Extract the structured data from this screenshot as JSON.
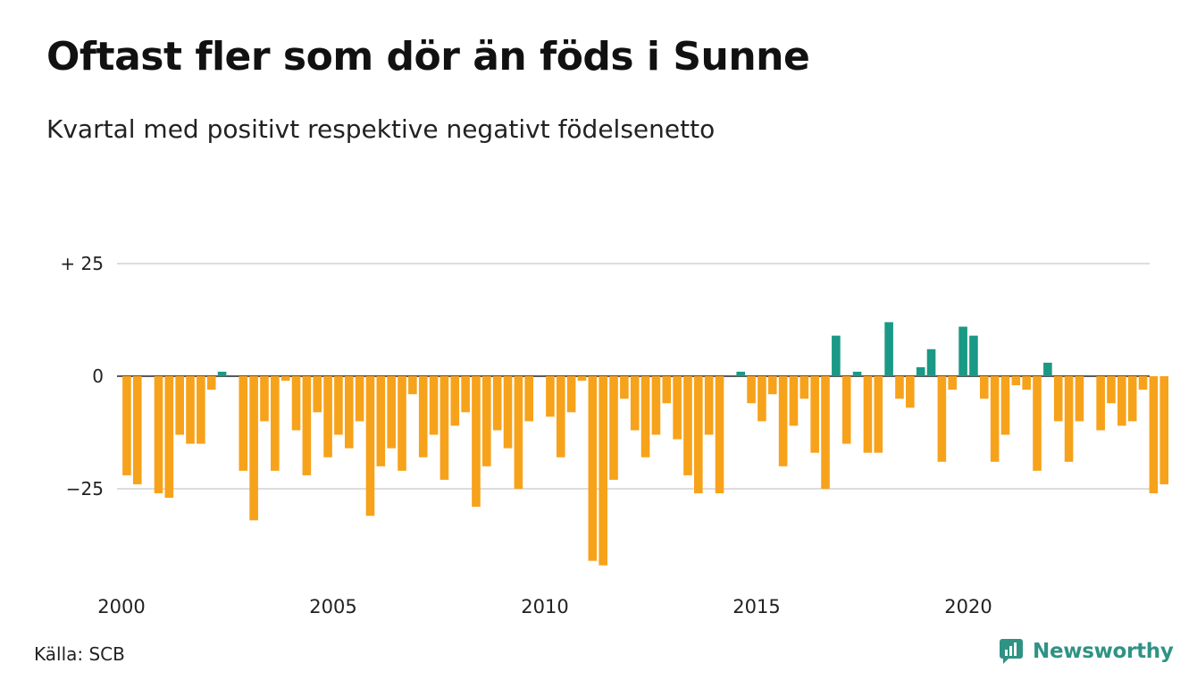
{
  "title": "Oftast fler som dör än föds i Sunne",
  "subtitle": "Kvartal med positivt respektive negativt födelsenetto",
  "source": "Källa: SCB",
  "brand": "Newsworthy",
  "brand_icon": "newsworthy-logo-icon",
  "colors": {
    "positive": "#1a9986",
    "negative": "#f7a21b",
    "grid": "#dddddd",
    "brand": "#2f9384"
  },
  "chart_data": {
    "type": "bar",
    "title": "Oftast fler som dör än föds i Sunne",
    "subtitle": "Kvartal med positivt respektive negativt födelsenetto",
    "xlabel": "",
    "ylabel": "",
    "ylim": [
      -43,
      25
    ],
    "xlim": [
      2000,
      2024.5
    ],
    "yticks": [
      {
        "value": 25,
        "label": "+ 25"
      },
      {
        "value": 0,
        "label": "0"
      },
      {
        "value": -25,
        "label": "−25"
      }
    ],
    "xticks": [
      {
        "value": 2000,
        "label": "2000"
      },
      {
        "value": 2005,
        "label": "2005"
      },
      {
        "value": 2010,
        "label": "2010"
      },
      {
        "value": 2015,
        "label": "2015"
      },
      {
        "value": 2020,
        "label": "2020"
      }
    ],
    "grid": true,
    "legend": "none",
    "categories": [
      "2000Q1",
      "2000Q2",
      "2000Q3",
      "2000Q4",
      "2001Q1",
      "2001Q2",
      "2001Q3",
      "2001Q4",
      "2002Q1",
      "2002Q2",
      "2002Q3",
      "2002Q4",
      "2003Q1",
      "2003Q2",
      "2003Q3",
      "2003Q4",
      "2004Q1",
      "2004Q2",
      "2004Q3",
      "2004Q4",
      "2005Q1",
      "2005Q2",
      "2005Q3",
      "2005Q4",
      "2006Q1",
      "2006Q2",
      "2006Q3",
      "2006Q4",
      "2007Q1",
      "2007Q2",
      "2007Q3",
      "2007Q4",
      "2008Q1",
      "2008Q2",
      "2008Q3",
      "2008Q4",
      "2009Q1",
      "2009Q2",
      "2009Q3",
      "2009Q4",
      "2010Q1",
      "2010Q2",
      "2010Q3",
      "2010Q4",
      "2011Q1",
      "2011Q2",
      "2011Q3",
      "2011Q4",
      "2012Q1",
      "2012Q2",
      "2012Q3",
      "2012Q4",
      "2013Q1",
      "2013Q2",
      "2013Q3",
      "2013Q4",
      "2014Q1",
      "2014Q2",
      "2014Q3",
      "2014Q4",
      "2015Q1",
      "2015Q2",
      "2015Q3",
      "2015Q4",
      "2016Q1",
      "2016Q2",
      "2016Q3",
      "2016Q4",
      "2017Q1",
      "2017Q2",
      "2017Q3",
      "2017Q4",
      "2018Q1",
      "2018Q2",
      "2018Q3",
      "2018Q4",
      "2019Q1",
      "2019Q2",
      "2019Q3",
      "2019Q4",
      "2020Q1",
      "2020Q2",
      "2020Q3",
      "2020Q4",
      "2021Q1",
      "2021Q2",
      "2021Q3",
      "2021Q4",
      "2022Q1",
      "2022Q2",
      "2022Q3",
      "2022Q4",
      "2023Q1",
      "2023Q2",
      "2023Q3",
      "2023Q4",
      "2024Q1",
      "2024Q2",
      "2024Q3",
      "2024Q4"
    ],
    "values": [
      -22,
      -24,
      0,
      -26,
      -27,
      -13,
      -15,
      -15,
      -3,
      1,
      0,
      -21,
      -32,
      -10,
      -21,
      -1,
      -12,
      -22,
      -8,
      -18,
      -13,
      -16,
      -10,
      -31,
      -20,
      -16,
      -21,
      -4,
      -18,
      -13,
      -23,
      -11,
      -8,
      -29,
      -20,
      -12,
      -16,
      -25,
      -10,
      0,
      -9,
      -18,
      -8,
      -1,
      -41,
      -42,
      -23,
      -5,
      -12,
      -18,
      -13,
      -6,
      -14,
      -22,
      -26,
      -13,
      -26,
      0,
      1,
      -6,
      -10,
      -4,
      -20,
      -11,
      -5,
      -17,
      -25,
      9,
      -15,
      1,
      -17,
      -17,
      12,
      -5,
      -7,
      2,
      6,
      -19,
      -3,
      11,
      9,
      -5,
      -19,
      -13,
      -2,
      -3,
      -21,
      3,
      -10,
      -19,
      -10,
      0,
      -12,
      -6,
      -11,
      -10,
      -3,
      -26,
      -24,
      0
    ]
  }
}
